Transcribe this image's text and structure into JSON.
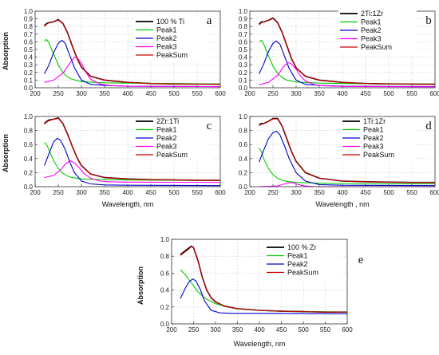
{
  "figure": {
    "width_label": ""
  },
  "chart_data": [
    {
      "type": "line",
      "panel_letter": "a",
      "xlabel": "",
      "ylabel": "Absorption",
      "xlim": [
        200,
        600
      ],
      "ylim": [
        0,
        1.0
      ],
      "xticks": [
        200,
        250,
        300,
        350,
        400,
        450,
        500,
        550,
        600
      ],
      "yticks": [
        0.0,
        0.1,
        0.2,
        0.3,
        0.4,
        0.5,
        0.6,
        0.7,
        0.8,
        0.9,
        1.0
      ],
      "grid": true,
      "legend_placement": "top-right",
      "series": [
        {
          "name": "100 % Ti",
          "color": "#000000",
          "x": [
            220,
            225,
            230,
            240,
            250,
            260,
            270,
            280,
            290,
            300,
            320,
            350,
            400,
            450,
            500,
            550,
            600
          ],
          "y": [
            0.81,
            0.84,
            0.85,
            0.86,
            0.89,
            0.84,
            0.72,
            0.55,
            0.39,
            0.27,
            0.15,
            0.1,
            0.07,
            0.055,
            0.05,
            0.048,
            0.046
          ]
        },
        {
          "name": "Peak1",
          "color": "#00cc00",
          "x": [
            220,
            225,
            230,
            240,
            250,
            260,
            270,
            280,
            300,
            350,
            400,
            500,
            600
          ],
          "y": [
            0.61,
            0.63,
            0.58,
            0.44,
            0.3,
            0.2,
            0.14,
            0.11,
            0.08,
            0.065,
            0.06,
            0.055,
            0.05
          ]
        },
        {
          "name": "Peak2",
          "color": "#0000cc",
          "x": [
            220,
            230,
            240,
            250,
            258,
            265,
            275,
            285,
            300,
            320,
            350,
            400,
            600
          ],
          "y": [
            0.18,
            0.3,
            0.46,
            0.58,
            0.62,
            0.58,
            0.42,
            0.26,
            0.1,
            0.045,
            0.03,
            0.02,
            0.015
          ]
        },
        {
          "name": "Peak3",
          "color": "#ff00ff",
          "x": [
            220,
            240,
            260,
            275,
            285,
            290,
            300,
            310,
            320,
            340,
            360,
            400,
            600
          ],
          "y": [
            0.07,
            0.1,
            0.19,
            0.32,
            0.4,
            0.4,
            0.32,
            0.2,
            0.11,
            0.05,
            0.03,
            0.02,
            0.015
          ]
        },
        {
          "name": "PeakSum",
          "color": "#cc0000",
          "x": [
            220,
            225,
            230,
            240,
            250,
            260,
            270,
            280,
            290,
            300,
            320,
            350,
            400,
            450,
            500,
            550,
            600
          ],
          "y": [
            0.8,
            0.83,
            0.85,
            0.86,
            0.885,
            0.84,
            0.72,
            0.55,
            0.39,
            0.27,
            0.15,
            0.1,
            0.07,
            0.055,
            0.05,
            0.048,
            0.046
          ]
        }
      ]
    },
    {
      "type": "line",
      "panel_letter": "b",
      "xlabel": "",
      "ylabel": "",
      "xlim": [
        200,
        600
      ],
      "ylim": [
        0,
        1.0
      ],
      "xticks": [
        200,
        250,
        300,
        350,
        400,
        450,
        500,
        550,
        600
      ],
      "yticks": [
        0.0,
        0.1,
        0.2,
        0.3,
        0.4,
        0.5,
        0.6,
        0.7,
        0.8,
        0.9,
        1.0
      ],
      "grid": true,
      "legend_placement": "top-right",
      "series": [
        {
          "name": "2Ti:1Zr",
          "color": "#000000",
          "x": [
            220,
            225,
            230,
            240,
            250,
            260,
            270,
            280,
            290,
            300,
            320,
            350,
            400,
            450,
            500,
            550,
            600
          ],
          "y": [
            0.83,
            0.86,
            0.86,
            0.88,
            0.91,
            0.85,
            0.72,
            0.55,
            0.38,
            0.26,
            0.15,
            0.1,
            0.07,
            0.055,
            0.05,
            0.048,
            0.046
          ]
        },
        {
          "name": "Peak1",
          "color": "#00cc00",
          "x": [
            220,
            225,
            230,
            240,
            250,
            260,
            270,
            280,
            300,
            350,
            400,
            500,
            600
          ],
          "y": [
            0.6,
            0.62,
            0.57,
            0.42,
            0.28,
            0.19,
            0.13,
            0.1,
            0.075,
            0.06,
            0.055,
            0.05,
            0.048
          ]
        },
        {
          "name": "Peak2",
          "color": "#0000cc",
          "x": [
            220,
            230,
            240,
            250,
            257,
            265,
            275,
            285,
            300,
            320,
            350,
            400,
            600
          ],
          "y": [
            0.18,
            0.31,
            0.47,
            0.58,
            0.61,
            0.57,
            0.41,
            0.25,
            0.1,
            0.045,
            0.03,
            0.02,
            0.015
          ]
        },
        {
          "name": "Peak3",
          "color": "#ff00ff",
          "x": [
            220,
            240,
            260,
            272,
            282,
            290,
            300,
            310,
            320,
            340,
            360,
            400,
            600
          ],
          "y": [
            0.04,
            0.07,
            0.16,
            0.27,
            0.33,
            0.31,
            0.24,
            0.15,
            0.09,
            0.04,
            0.025,
            0.018,
            0.012
          ]
        },
        {
          "name": "PeakSum",
          "color": "#cc0000",
          "x": [
            220,
            225,
            230,
            240,
            250,
            260,
            270,
            280,
            290,
            300,
            320,
            350,
            400,
            450,
            500,
            550,
            600
          ],
          "y": [
            0.82,
            0.85,
            0.86,
            0.88,
            0.905,
            0.85,
            0.72,
            0.55,
            0.38,
            0.26,
            0.15,
            0.1,
            0.07,
            0.055,
            0.05,
            0.048,
            0.046
          ]
        }
      ]
    },
    {
      "type": "line",
      "panel_letter": "c",
      "xlabel": "Wavelength, nm",
      "ylabel": "Absorption",
      "xlim": [
        200,
        600
      ],
      "ylim": [
        0,
        1.0
      ],
      "xticks": [
        200,
        250,
        300,
        350,
        400,
        450,
        500,
        550,
        600
      ],
      "yticks": [
        0.0,
        0.2,
        0.4,
        0.6,
        0.8,
        1.0
      ],
      "grid": true,
      "legend_placement": "top-right",
      "series": [
        {
          "name": "2Zr:1Ti",
          "color": "#000000",
          "x": [
            220,
            225,
            230,
            240,
            250,
            260,
            270,
            280,
            290,
            300,
            320,
            350,
            400,
            450,
            500,
            550,
            600
          ],
          "y": [
            0.9,
            0.93,
            0.95,
            0.96,
            0.98,
            0.9,
            0.75,
            0.58,
            0.42,
            0.3,
            0.18,
            0.13,
            0.11,
            0.1,
            0.095,
            0.09,
            0.09
          ]
        },
        {
          "name": "Peak1",
          "color": "#00cc00",
          "x": [
            220,
            225,
            230,
            240,
            250,
            260,
            270,
            280,
            300,
            350,
            400,
            500,
            600
          ],
          "y": [
            0.63,
            0.6,
            0.52,
            0.37,
            0.26,
            0.19,
            0.15,
            0.13,
            0.11,
            0.1,
            0.095,
            0.09,
            0.09
          ]
        },
        {
          "name": "Peak2",
          "color": "#0000cc",
          "x": [
            220,
            230,
            240,
            248,
            255,
            265,
            275,
            285,
            300,
            320,
            350,
            400,
            600
          ],
          "y": [
            0.3,
            0.47,
            0.64,
            0.69,
            0.66,
            0.53,
            0.35,
            0.2,
            0.08,
            0.04,
            0.025,
            0.02,
            0.015
          ]
        },
        {
          "name": "Peak3",
          "color": "#ff00ff",
          "x": [
            220,
            240,
            255,
            265,
            275,
            285,
            295,
            305,
            320,
            340,
            360,
            400,
            600
          ],
          "y": [
            0.13,
            0.16,
            0.24,
            0.32,
            0.37,
            0.34,
            0.27,
            0.19,
            0.12,
            0.08,
            0.07,
            0.065,
            0.06
          ]
        },
        {
          "name": "PeakSum",
          "color": "#cc0000",
          "x": [
            220,
            225,
            230,
            240,
            250,
            260,
            270,
            280,
            290,
            300,
            320,
            350,
            400,
            450,
            500,
            550,
            600
          ],
          "y": [
            0.89,
            0.92,
            0.94,
            0.96,
            0.975,
            0.9,
            0.75,
            0.58,
            0.42,
            0.3,
            0.18,
            0.13,
            0.11,
            0.1,
            0.095,
            0.09,
            0.09
          ]
        }
      ]
    },
    {
      "type": "line",
      "panel_letter": "d",
      "xlabel": "Wavelength , nm",
      "ylabel": "",
      "xlim": [
        200,
        600
      ],
      "ylim": [
        0,
        1.0
      ],
      "xticks": [
        200,
        250,
        300,
        350,
        400,
        450,
        500,
        550,
        600
      ],
      "yticks": [
        0.0,
        0.2,
        0.4,
        0.6,
        0.8,
        1.0
      ],
      "grid": true,
      "legend_placement": "top-right",
      "series": [
        {
          "name": "1Ti:1Zr",
          "color": "#000000",
          "x": [
            220,
            225,
            230,
            240,
            250,
            260,
            270,
            280,
            290,
            300,
            320,
            350,
            400,
            450,
            500,
            550,
            600
          ],
          "y": [
            0.88,
            0.9,
            0.9,
            0.93,
            0.97,
            0.97,
            0.86,
            0.68,
            0.5,
            0.36,
            0.2,
            0.12,
            0.08,
            0.07,
            0.065,
            0.06,
            0.06
          ]
        },
        {
          "name": "Peak1",
          "color": "#00cc00",
          "x": [
            220,
            225,
            230,
            240,
            250,
            260,
            270,
            280,
            300,
            350,
            400,
            500,
            600
          ],
          "y": [
            0.55,
            0.5,
            0.4,
            0.26,
            0.17,
            0.12,
            0.09,
            0.075,
            0.06,
            0.05,
            0.045,
            0.04,
            0.04
          ]
        },
        {
          "name": "Peak2",
          "color": "#0000cc",
          "x": [
            220,
            230,
            240,
            250,
            258,
            265,
            275,
            285,
            300,
            320,
            350,
            400,
            600
          ],
          "y": [
            0.35,
            0.52,
            0.68,
            0.77,
            0.79,
            0.74,
            0.58,
            0.4,
            0.2,
            0.08,
            0.03,
            0.02,
            0.015
          ]
        },
        {
          "name": "Peak3",
          "color": "#ff00ff",
          "x": [
            220,
            260,
            270,
            280,
            290,
            300,
            310,
            320,
            340,
            400,
            600
          ],
          "y": [
            0.0,
            0.01,
            0.03,
            0.05,
            0.06,
            0.04,
            0.02,
            0.01,
            0.0,
            0.0,
            0.0
          ]
        },
        {
          "name": "PeakSum",
          "color": "#cc0000",
          "x": [
            220,
            225,
            230,
            240,
            250,
            260,
            270,
            280,
            290,
            300,
            320,
            350,
            400,
            450,
            500,
            550,
            600
          ],
          "y": [
            0.87,
            0.89,
            0.9,
            0.93,
            0.965,
            0.965,
            0.86,
            0.68,
            0.5,
            0.36,
            0.2,
            0.12,
            0.08,
            0.07,
            0.065,
            0.06,
            0.06
          ]
        }
      ]
    },
    {
      "type": "line",
      "panel_letter": "e",
      "xlabel": "Wavelength, nm",
      "ylabel": "Absorption",
      "xlim": [
        200,
        600
      ],
      "ylim": [
        0,
        1.0
      ],
      "xticks": [
        200,
        250,
        300,
        350,
        400,
        450,
        500,
        550,
        600
      ],
      "yticks": [
        0.0,
        0.2,
        0.4,
        0.6,
        0.8,
        1.0
      ],
      "grid": true,
      "legend_placement": "top-right",
      "series": [
        {
          "name": "100 %  Zr",
          "color": "#000000",
          "x": [
            220,
            225,
            230,
            240,
            245,
            250,
            260,
            270,
            280,
            290,
            300,
            320,
            350,
            400,
            450,
            500,
            550,
            600
          ],
          "y": [
            0.82,
            0.84,
            0.86,
            0.9,
            0.92,
            0.9,
            0.75,
            0.55,
            0.4,
            0.31,
            0.26,
            0.21,
            0.18,
            0.16,
            0.15,
            0.145,
            0.14,
            0.14
          ]
        },
        {
          "name": "Peak1",
          "color": "#00cc00",
          "x": [
            220,
            230,
            240,
            250,
            260,
            270,
            280,
            300,
            320,
            350,
            400,
            450,
            500,
            600
          ],
          "y": [
            0.64,
            0.59,
            0.52,
            0.45,
            0.38,
            0.33,
            0.29,
            0.24,
            0.21,
            0.18,
            0.16,
            0.15,
            0.145,
            0.14
          ]
        },
        {
          "name": "Peak2",
          "color": "#0000cc",
          "x": [
            220,
            230,
            240,
            248,
            255,
            265,
            275,
            290,
            310,
            340,
            400,
            600
          ],
          "y": [
            0.3,
            0.41,
            0.5,
            0.53,
            0.51,
            0.41,
            0.27,
            0.16,
            0.13,
            0.125,
            0.125,
            0.12
          ]
        },
        {
          "name": "PeakSum",
          "color": "#cc0000",
          "x": [
            220,
            225,
            230,
            240,
            245,
            250,
            260,
            270,
            280,
            290,
            300,
            320,
            350,
            400,
            450,
            500,
            550,
            600
          ],
          "y": [
            0.81,
            0.83,
            0.85,
            0.89,
            0.915,
            0.9,
            0.75,
            0.55,
            0.4,
            0.31,
            0.26,
            0.21,
            0.18,
            0.16,
            0.15,
            0.145,
            0.14,
            0.14
          ]
        }
      ]
    }
  ]
}
